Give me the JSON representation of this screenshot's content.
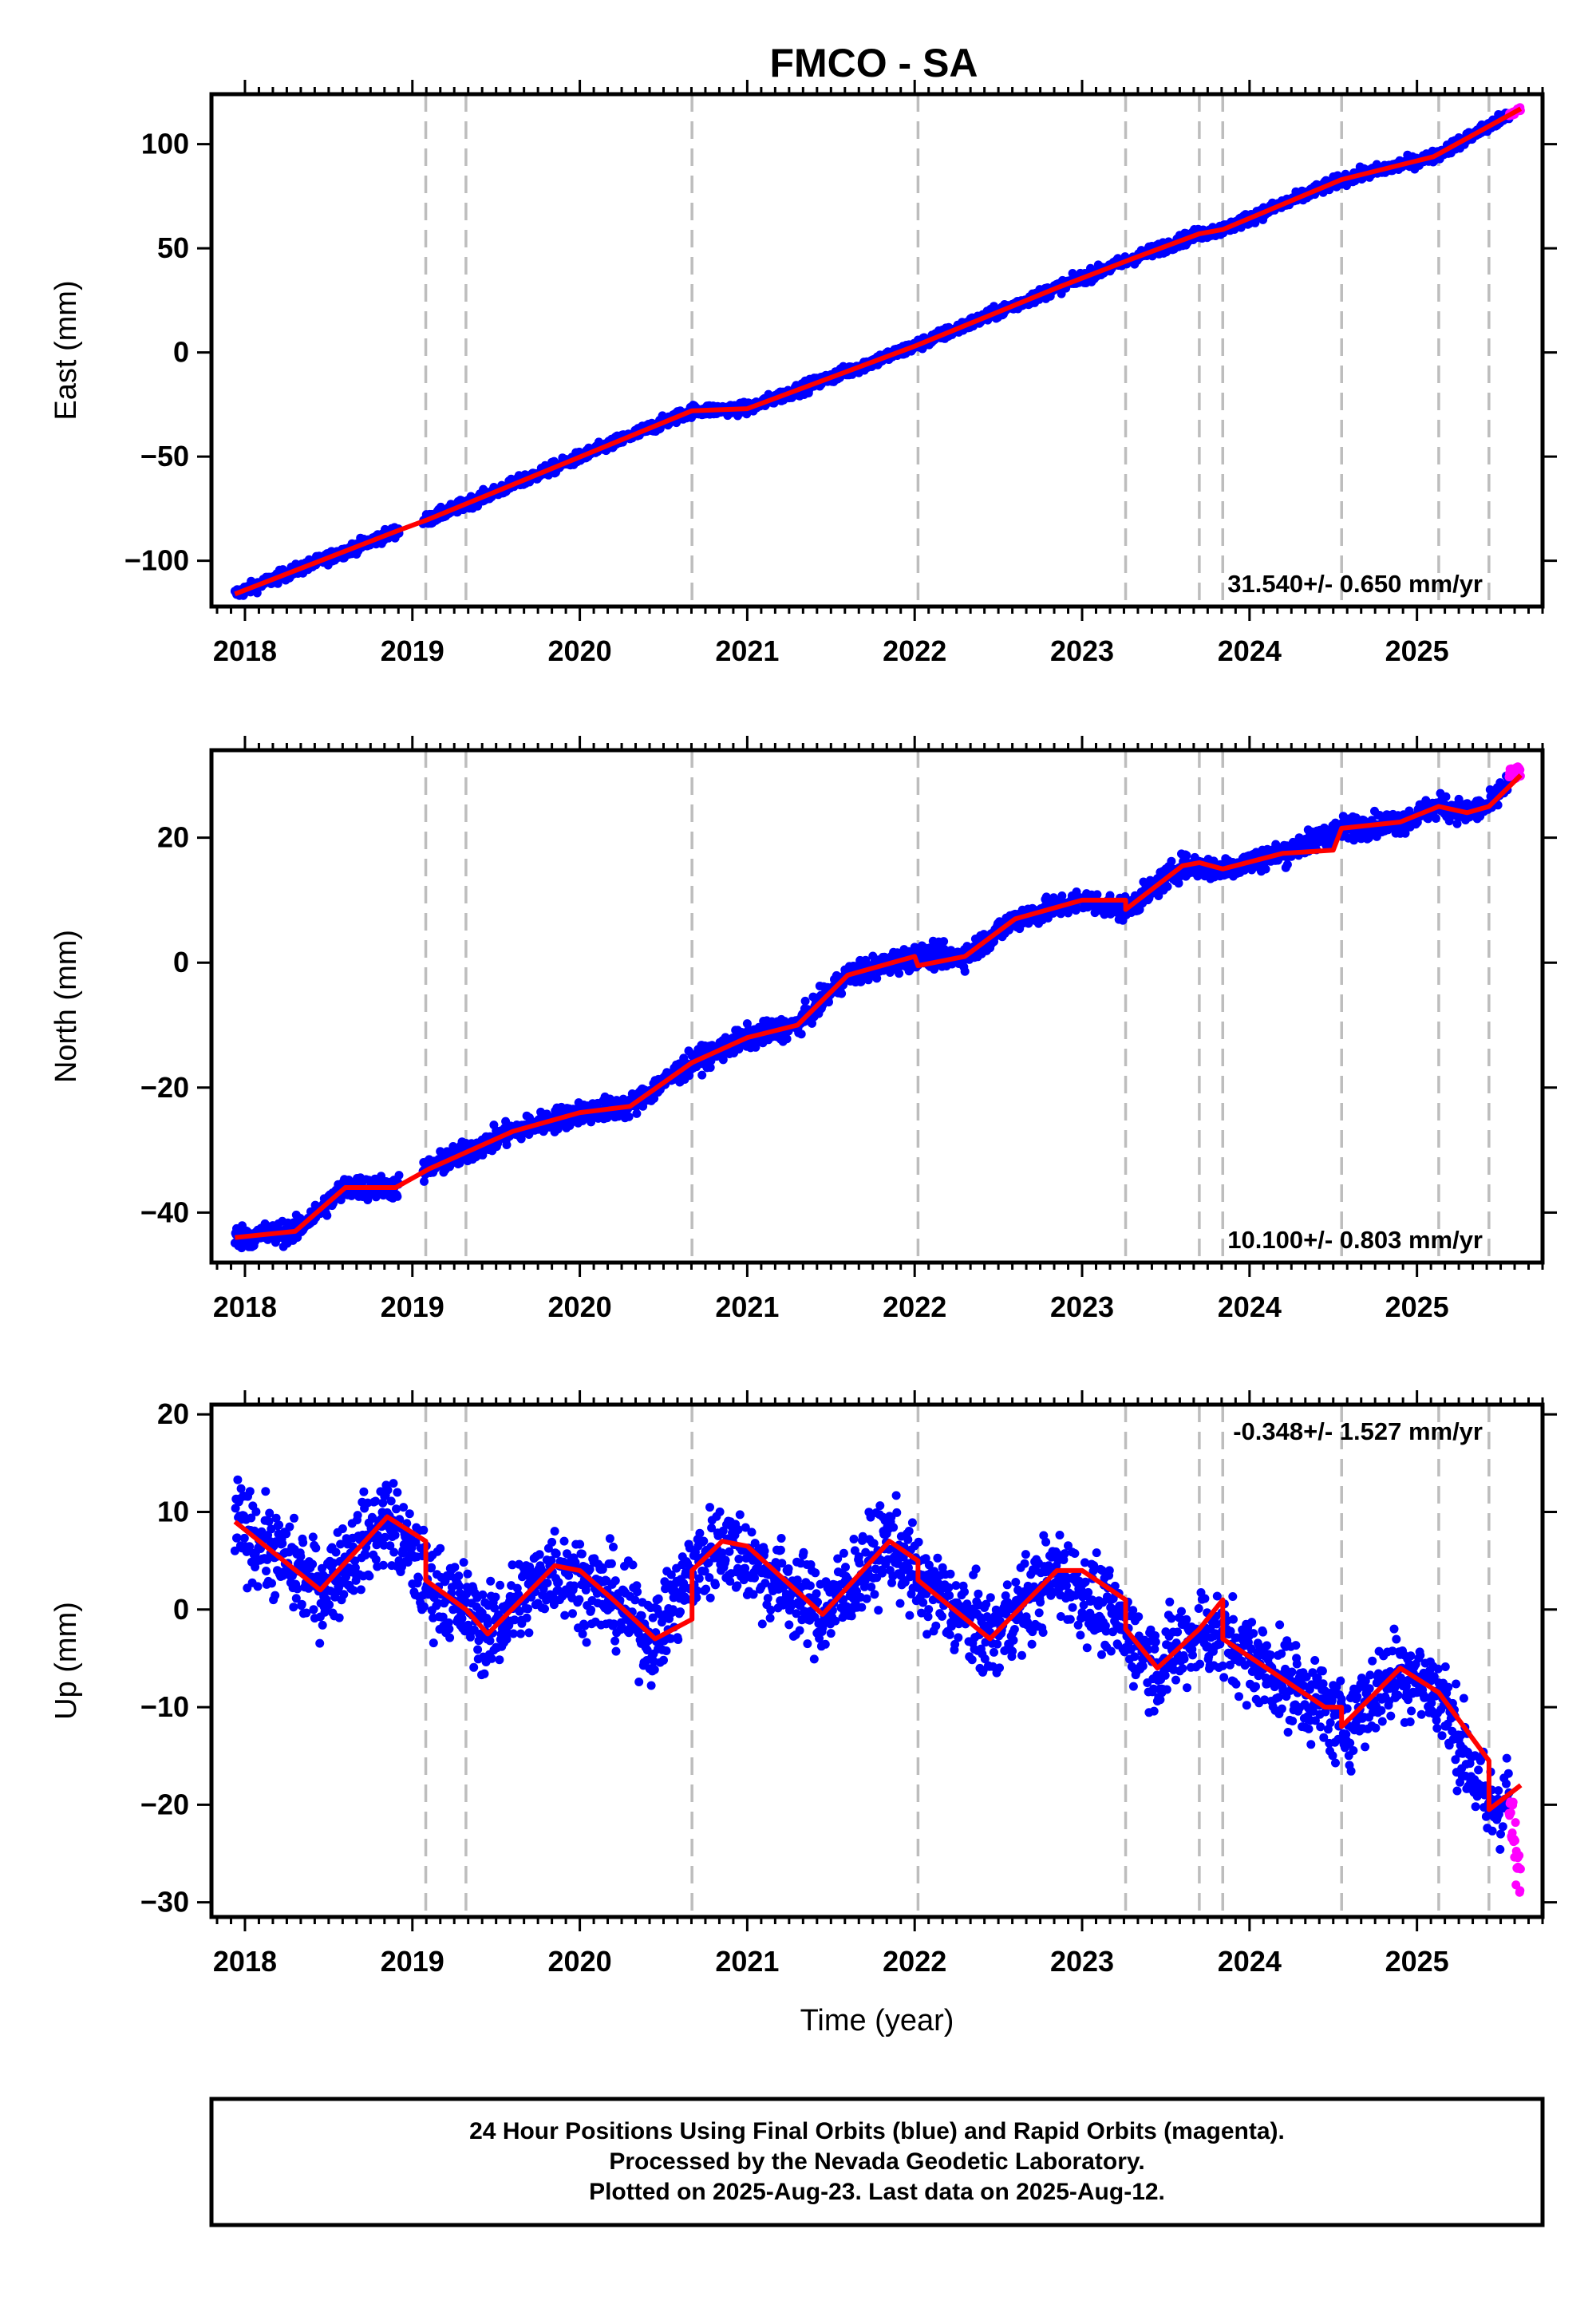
{
  "chart_data": [
    {
      "type": "scatter",
      "title": "FMCO - SA",
      "ylabel": "East (mm)",
      "xlabel": "",
      "xlim": [
        2017.8,
        2025.75
      ],
      "ylim": [
        -122,
        124
      ],
      "yticks": [
        -100,
        -50,
        0,
        50,
        100
      ],
      "xticks": [
        2018,
        2019,
        2020,
        2021,
        2022,
        2023,
        2024,
        2025
      ],
      "rate_text": "31.540+/- 0.650 mm/yr",
      "rate_position": "bottom-right",
      "event_lines": [
        2019.08,
        2019.32,
        2020.67,
        2022.02,
        2023.26,
        2023.7,
        2023.84,
        2024.55,
        2025.13,
        2025.43
      ],
      "model_fit": {
        "x": [
          2017.94,
          2018.9,
          2019.1,
          2020.67,
          2021.0,
          2022.0,
          2022.85,
          2023.3,
          2023.7,
          2023.84,
          2024.55,
          2025.1,
          2025.62
        ],
        "y": [
          -116,
          -86,
          -80,
          -28,
          -27,
          3,
          31,
          45,
          57,
          59,
          83,
          94,
          117
        ]
      },
      "series": [
        {
          "name": "Final Orbits (blue)",
          "color": "#0000ff",
          "x": [
            2017.94,
            2018.9,
            2019.1,
            2020.67,
            2021.0,
            2022.0,
            2022.85,
            2023.3,
            2023.7,
            2023.84,
            2024.55,
            2025.1,
            2025.55
          ],
          "y": [
            -116,
            -86,
            -80,
            -28,
            -27,
            3,
            31,
            45,
            57,
            59,
            83,
            94,
            114
          ],
          "noise": 2.0
        },
        {
          "name": "Rapid Orbits (magenta)",
          "color": "#ff00ff",
          "x": [
            2025.55,
            2025.62
          ],
          "y": [
            114,
            117
          ],
          "noise": 1.0
        }
      ]
    },
    {
      "type": "scatter",
      "title": "",
      "ylabel": "North (mm)",
      "xlabel": "",
      "xlim": [
        2017.8,
        2025.75
      ],
      "ylim": [
        -48,
        34
      ],
      "yticks": [
        -40,
        -20,
        0,
        20
      ],
      "xticks": [
        2018,
        2019,
        2020,
        2021,
        2022,
        2023,
        2024,
        2025
      ],
      "rate_text": "10.100+/- 0.803 mm/yr",
      "rate_position": "bottom-right",
      "event_lines": [
        2019.08,
        2019.32,
        2020.67,
        2022.02,
        2023.26,
        2023.7,
        2023.84,
        2024.55,
        2025.13,
        2025.43
      ],
      "model_fit": {
        "x": [
          2017.94,
          2018.3,
          2018.6,
          2018.9,
          2019.1,
          2019.6,
          2020.0,
          2020.3,
          2020.67,
          2021.0,
          2021.3,
          2021.6,
          2022.0,
          2022.02,
          2022.3,
          2022.6,
          2023.0,
          2023.26,
          2023.26,
          2023.6,
          2023.7,
          2023.84,
          2024.2,
          2024.5,
          2024.55,
          2024.9,
          2025.13,
          2025.3,
          2025.43,
          2025.62
        ],
        "y": [
          -44,
          -43,
          -36,
          -36,
          -33,
          -27,
          -24,
          -23,
          -16,
          -12,
          -10,
          -2,
          1,
          -0.5,
          1,
          7,
          10,
          10,
          8.5,
          15.5,
          16,
          15,
          17.5,
          18,
          21.5,
          22.5,
          25,
          24,
          25,
          30
        ],
        "breaks": [
          1,
          13,
          18,
          21,
          24
        ]
      },
      "series": [
        {
          "name": "Final Orbits (blue)",
          "color": "#0000ff",
          "x": [
            2017.94,
            2018.3,
            2018.6,
            2018.9,
            2019.1,
            2019.6,
            2020.0,
            2020.3,
            2020.67,
            2021.0,
            2021.3,
            2021.6,
            2022.0,
            2022.3,
            2022.6,
            2023.0,
            2023.26,
            2023.6,
            2023.84,
            2024.2,
            2024.55,
            2024.9,
            2025.13,
            2025.3,
            2025.43,
            2025.55
          ],
          "y": [
            -44,
            -43,
            -36,
            -36,
            -33,
            -27,
            -24,
            -23,
            -16,
            -12,
            -10,
            -2,
            1,
            1,
            7,
            10,
            8.5,
            15.5,
            15,
            17.5,
            21.5,
            22.5,
            25,
            24,
            25,
            29
          ],
          "noise": 1.3
        },
        {
          "name": "Rapid Orbits (magenta)",
          "color": "#ff00ff",
          "x": [
            2025.55,
            2025.62
          ],
          "y": [
            30,
            30.5
          ],
          "noise": 0.8
        }
      ]
    },
    {
      "type": "scatter",
      "title": "",
      "ylabel": "Up (mm)",
      "xlabel": "Time (year)",
      "xlim": [
        2017.8,
        2025.75
      ],
      "ylim": [
        -31.5,
        21
      ],
      "yticks": [
        -30,
        -20,
        -10,
        0,
        10,
        20
      ],
      "xticks": [
        2018,
        2019,
        2020,
        2021,
        2022,
        2023,
        2024,
        2025
      ],
      "rate_text": "-0.348+/- 1.527 mm/yr",
      "rate_position": "top-right",
      "event_lines": [
        2019.08,
        2019.32,
        2020.67,
        2022.02,
        2023.26,
        2023.7,
        2023.84,
        2024.55,
        2025.13,
        2025.43
      ],
      "model_fit": {
        "x": [
          2017.94,
          2018.45,
          2018.85,
          2019.08,
          2019.08,
          2019.32,
          2019.45,
          2019.85,
          2020.0,
          2020.2,
          2020.45,
          2020.67,
          2020.67,
          2020.85,
          2021.0,
          2021.45,
          2021.85,
          2022.02,
          2022.02,
          2022.45,
          2022.85,
          2023.0,
          2023.26,
          2023.26,
          2023.45,
          2023.7,
          2023.84,
          2023.84,
          2024.45,
          2024.55,
          2024.55,
          2024.9,
          2025.13,
          2025.43,
          2025.43,
          2025.62
        ],
        "y": [
          9,
          2,
          9.5,
          7,
          3,
          0,
          -2.5,
          4.5,
          4,
          1,
          -3,
          -1,
          4,
          7,
          6.5,
          -0.5,
          7,
          5,
          3,
          -3,
          4,
          4,
          1,
          -2,
          -6,
          -2,
          1,
          -3,
          -10,
          -10,
          -12,
          -6,
          -8.5,
          -15.5,
          -20.5,
          -18
        ],
        "breaks": [
          4,
          12,
          18,
          23,
          27,
          30,
          34
        ]
      },
      "series": [
        {
          "name": "Final Orbits (blue)",
          "color": "#0000ff",
          "x": [
            2017.94,
            2018.45,
            2018.85,
            2019.08,
            2019.32,
            2019.45,
            2019.85,
            2020.2,
            2020.45,
            2020.67,
            2020.85,
            2021.45,
            2021.85,
            2022.02,
            2022.45,
            2022.85,
            2023.26,
            2023.45,
            2023.7,
            2023.84,
            2024.45,
            2024.55,
            2024.9,
            2025.13,
            2025.43,
            2025.55
          ],
          "y": [
            9,
            2,
            9.5,
            3,
            0,
            -2.5,
            4.5,
            1,
            -3,
            4,
            7,
            -0.5,
            7,
            3,
            -3,
            4,
            -2,
            -6,
            -2,
            -3,
            -10,
            -12,
            -6,
            -8.5,
            -20.5,
            -19
          ],
          "noise": 3.2
        },
        {
          "name": "Rapid Orbits (magenta)",
          "color": "#ff00ff",
          "x": [
            2025.55,
            2025.62
          ],
          "y": [
            -20,
            -29
          ],
          "noise": 2.5
        }
      ]
    }
  ],
  "footer": {
    "line1": "24 Hour Positions Using Final Orbits (blue) and Rapid Orbits (magenta).",
    "line2": "Processed by the Nevada Geodetic Laboratory.",
    "line3": "Plotted on 2025-Aug-23. Last data on 2025-Aug-12."
  }
}
